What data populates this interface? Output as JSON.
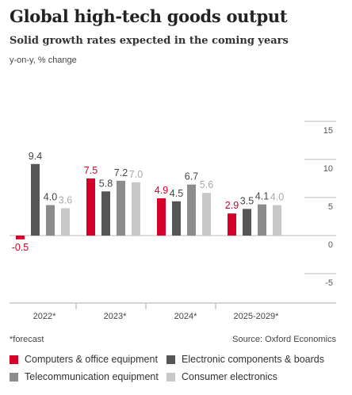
{
  "title": "Global high-tech goods output",
  "subtitle": "Solid growth rates expected in the coming years",
  "unit_label": "y-on-y, % change",
  "footnote": "*forecast",
  "source": "Source: Oxford Economics",
  "colors": {
    "computers": "#d4002a",
    "electronic": "#555555",
    "telecom": "#8c8c8c",
    "consumer": "#c8c8c8"
  },
  "chart_data": {
    "type": "bar",
    "categories": [
      "2022*",
      "2023*",
      "2024*",
      "2025-2029*"
    ],
    "series": [
      {
        "name": "Computers & office equipment",
        "color_key": "computers",
        "values": [
          -0.5,
          7.5,
          4.9,
          2.9
        ]
      },
      {
        "name": "Electronic components & boards",
        "color_key": "electronic",
        "values": [
          9.4,
          5.8,
          4.5,
          3.5
        ]
      },
      {
        "name": "Telecommunication equipment",
        "color_key": "telecom",
        "values": [
          4.0,
          7.2,
          6.7,
          4.1
        ]
      },
      {
        "name": "Consumer electronics",
        "color_key": "consumer",
        "values": [
          3.6,
          7.0,
          5.6,
          4.0
        ]
      }
    ],
    "ylim": [
      -5,
      15
    ],
    "yticks": [
      15,
      10,
      5,
      0,
      -5
    ],
    "axis_side": "right",
    "legend": "bottom"
  }
}
